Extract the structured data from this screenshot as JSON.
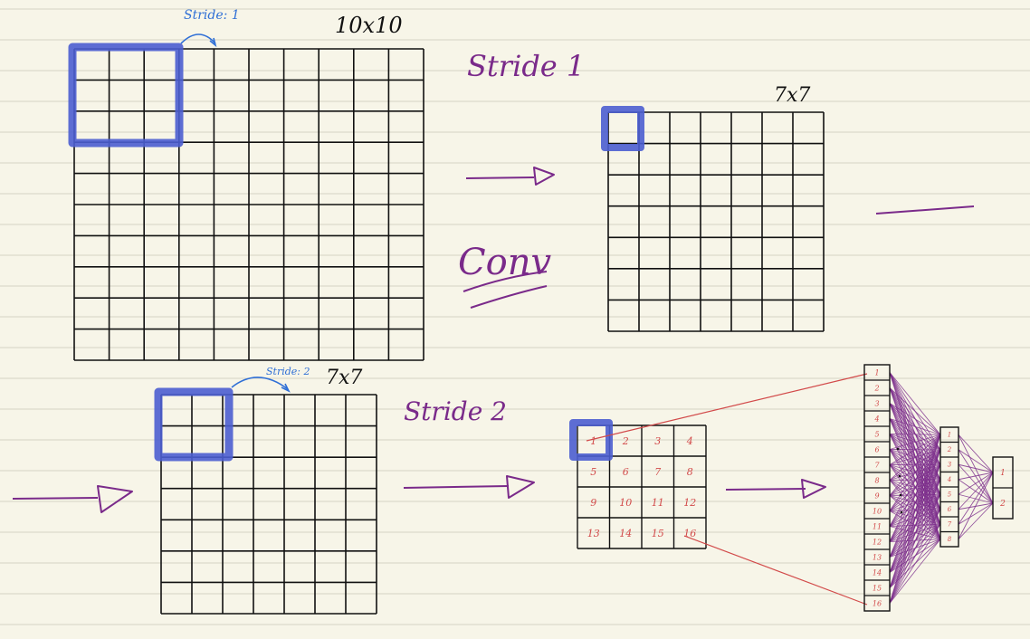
{
  "colors": {
    "paper": "#f7f5e8",
    "ruled_line": "#d6d3c3",
    "ink": "#111111",
    "purple_ink": "#7a2a8a",
    "blue_ink": "#2f6fd6",
    "highlight": "#4b5ed0",
    "red_ink": "#d24a4a"
  },
  "labels": {
    "stride_small_1": "Stride: 1",
    "size_10": "10x10",
    "stride_1": "Stride 1",
    "size_7_a": "7x7",
    "conv": "Conv",
    "stride_small_2": "Stride: 2",
    "size_7_b": "7x7",
    "stride_2": "Stride 2"
  },
  "grid_4x4_cells": [
    "1",
    "2",
    "3",
    "4",
    "5",
    "6",
    "7",
    "8",
    "9",
    "10",
    "11",
    "12",
    "13",
    "14",
    "15",
    "16"
  ],
  "column_16_cells": [
    "1",
    "2",
    "3",
    "4",
    "5",
    "6",
    "7",
    "8",
    "9",
    "10",
    "11",
    "12",
    "13",
    "14",
    "15",
    "16"
  ],
  "column_8_cells": [
    "1",
    "2",
    "3",
    "4",
    "5",
    "6",
    "7",
    "8"
  ],
  "column_2_cells": [
    "1",
    "2"
  ],
  "grids": {
    "grid_10x10": {
      "rows": 10,
      "cols": 10
    },
    "grid_7x7_output": {
      "rows": 7,
      "cols": 7
    },
    "grid_7x7_input": {
      "rows": 7,
      "cols": 7
    }
  }
}
